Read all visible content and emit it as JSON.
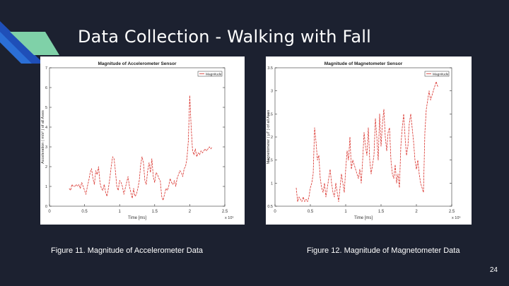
{
  "slide": {
    "title": "Data Collection - Walking with Fall",
    "page_number": "24",
    "colors": {
      "background": "#1c2130",
      "accent_dark": "#1f4fb8",
      "accent_mid": "#2b6fd6",
      "accent_light": "#7fd1a8",
      "series": "#d9312b"
    }
  },
  "figures": [
    {
      "caption": "Figure 11. Magnitude of Accelerometer Data"
    },
    {
      "caption": "Figure 12. Magnitude of Magnetometer Data"
    }
  ],
  "chart_data": [
    {
      "type": "line",
      "title": "Magnitude of Accelerometer Sensor",
      "xlabel": "Time [ms]",
      "ylabel": "Acceleration ( m/s² ) of all Axes",
      "x_multiplier": "x 10⁵",
      "xlim": [
        0,
        2.5
      ],
      "ylim": [
        0,
        7
      ],
      "xticks": [
        "0",
        "0.5",
        "1",
        "1.5",
        "2",
        "2.5"
      ],
      "yticks": [
        "0",
        "1",
        "2",
        "3",
        "4",
        "5",
        "6",
        "7"
      ],
      "legend": {
        "entries": [
          "Magnitude"
        ],
        "position": "top-right"
      },
      "series": [
        {
          "name": "Magnitude",
          "color": "#d9312b",
          "x": [
            0.28,
            0.3,
            0.32,
            0.34,
            0.36,
            0.38,
            0.4,
            0.42,
            0.44,
            0.46,
            0.48,
            0.5,
            0.52,
            0.54,
            0.56,
            0.58,
            0.6,
            0.62,
            0.64,
            0.66,
            0.68,
            0.7,
            0.72,
            0.74,
            0.76,
            0.78,
            0.8,
            0.82,
            0.84,
            0.86,
            0.88,
            0.9,
            0.92,
            0.94,
            0.96,
            0.98,
            1.0,
            1.02,
            1.04,
            1.06,
            1.08,
            1.1,
            1.12,
            1.14,
            1.16,
            1.18,
            1.2,
            1.22,
            1.24,
            1.26,
            1.28,
            1.3,
            1.32,
            1.34,
            1.36,
            1.38,
            1.4,
            1.42,
            1.44,
            1.46,
            1.48,
            1.5,
            1.52,
            1.54,
            1.56,
            1.58,
            1.6,
            1.62,
            1.64,
            1.66,
            1.68,
            1.7,
            1.72,
            1.74,
            1.76,
            1.78,
            1.8,
            1.82,
            1.84,
            1.86,
            1.88,
            1.9,
            1.92,
            1.94,
            1.96,
            1.98,
            2.0,
            2.02,
            2.04,
            2.06,
            2.08,
            2.1,
            2.12,
            2.14,
            2.16,
            2.18,
            2.2,
            2.22,
            2.24,
            2.26,
            2.28,
            2.3,
            2.32
          ],
          "values": [
            0.9,
            0.8,
            1.1,
            1.0,
            1.0,
            1.1,
            1.0,
            1.1,
            0.9,
            1.2,
            1.0,
            0.8,
            0.6,
            1.0,
            1.3,
            1.7,
            1.9,
            1.4,
            1.1,
            1.8,
            1.6,
            2.0,
            1.2,
            0.9,
            0.8,
            1.1,
            0.7,
            0.5,
            0.9,
            1.4,
            2.0,
            2.5,
            2.4,
            1.8,
            1.0,
            0.8,
            1.3,
            1.2,
            1.0,
            0.6,
            0.9,
            1.2,
            1.5,
            1.0,
            0.7,
            0.4,
            0.9,
            0.5,
            0.6,
            0.9,
            1.3,
            2.1,
            2.5,
            2.2,
            1.3,
            1.1,
            1.8,
            2.2,
            1.7,
            2.4,
            1.5,
            1.2,
            1.7,
            1.6,
            1.4,
            1.3,
            0.5,
            0.3,
            0.6,
            0.9,
            0.8,
            1.0,
            1.4,
            1.2,
            1.1,
            1.3,
            1.0,
            1.4,
            1.6,
            1.8,
            1.7,
            1.5,
            1.9,
            2.0,
            2.4,
            3.3,
            5.6,
            4.0,
            2.8,
            2.6,
            2.9,
            2.5,
            2.7,
            2.6,
            2.8,
            2.7,
            2.8,
            2.9,
            2.8,
            2.9,
            3.0,
            2.9,
            3.0
          ]
        }
      ]
    },
    {
      "type": "line",
      "title": "Magnitude of Magnetometer Sensor",
      "xlabel": "Time [ms]",
      "ylabel": "Magnetometer ( μT ) of all Axes",
      "x_multiplier": "x 10⁵",
      "xlim": [
        0,
        2.5
      ],
      "ylim": [
        0.5,
        3.5
      ],
      "xticks": [
        "0",
        "0.5",
        "1",
        "1.5",
        "2",
        "2.5"
      ],
      "yticks": [
        "0.5",
        "1",
        "1.5",
        "2",
        "2.5",
        "3",
        "3.5"
      ],
      "legend": {
        "entries": [
          "Magnitude"
        ],
        "position": "top-right"
      },
      "series": [
        {
          "name": "Magnitude",
          "color": "#d9312b",
          "x": [
            0.3,
            0.32,
            0.34,
            0.36,
            0.38,
            0.4,
            0.42,
            0.44,
            0.46,
            0.48,
            0.5,
            0.52,
            0.54,
            0.56,
            0.58,
            0.6,
            0.62,
            0.64,
            0.66,
            0.68,
            0.7,
            0.72,
            0.74,
            0.76,
            0.78,
            0.8,
            0.82,
            0.84,
            0.86,
            0.88,
            0.9,
            0.92,
            0.94,
            0.96,
            0.98,
            1.0,
            1.02,
            1.04,
            1.06,
            1.08,
            1.1,
            1.12,
            1.14,
            1.16,
            1.18,
            1.2,
            1.22,
            1.24,
            1.26,
            1.28,
            1.3,
            1.32,
            1.34,
            1.36,
            1.38,
            1.4,
            1.42,
            1.44,
            1.46,
            1.48,
            1.5,
            1.52,
            1.54,
            1.56,
            1.58,
            1.6,
            1.62,
            1.64,
            1.66,
            1.68,
            1.7,
            1.72,
            1.74,
            1.76,
            1.78,
            1.8,
            1.82,
            1.84,
            1.86,
            1.88,
            1.9,
            1.92,
            1.94,
            1.96,
            1.98,
            2.0,
            2.02,
            2.04,
            2.06,
            2.08,
            2.1,
            2.12,
            2.14,
            2.16,
            2.18,
            2.2,
            2.22,
            2.24,
            2.26,
            2.28,
            2.3,
            2.32
          ],
          "values": [
            0.9,
            0.6,
            0.7,
            0.65,
            0.6,
            0.7,
            0.6,
            0.65,
            0.6,
            0.7,
            0.9,
            1.0,
            1.2,
            2.2,
            1.9,
            1.5,
            1.6,
            1.1,
            0.9,
            0.8,
            1.0,
            0.7,
            0.9,
            1.1,
            1.3,
            1.0,
            0.8,
            0.7,
            1.0,
            0.8,
            0.6,
            0.9,
            1.2,
            1.0,
            0.8,
            1.3,
            1.7,
            1.5,
            2.0,
            1.3,
            1.5,
            1.4,
            1.3,
            1.2,
            1.1,
            1.3,
            1.0,
            1.5,
            2.1,
            1.8,
            1.6,
            2.2,
            1.5,
            1.2,
            1.4,
            1.6,
            2.4,
            2.0,
            1.5,
            2.5,
            1.8,
            2.3,
            2.6,
            2.0,
            1.7,
            2.1,
            2.2,
            1.5,
            1.2,
            1.1,
            1.4,
            1.0,
            1.2,
            0.9,
            1.8,
            2.2,
            2.5,
            2.0,
            1.6,
            1.8,
            2.3,
            2.5,
            2.2,
            1.9,
            1.5,
            1.3,
            1.5,
            1.2,
            1.0,
            0.9,
            0.8,
            2.1,
            2.6,
            2.8,
            3.0,
            2.8,
            2.9,
            3.0,
            3.1,
            3.2,
            3.1,
            3.1
          ]
        }
      ]
    }
  ]
}
